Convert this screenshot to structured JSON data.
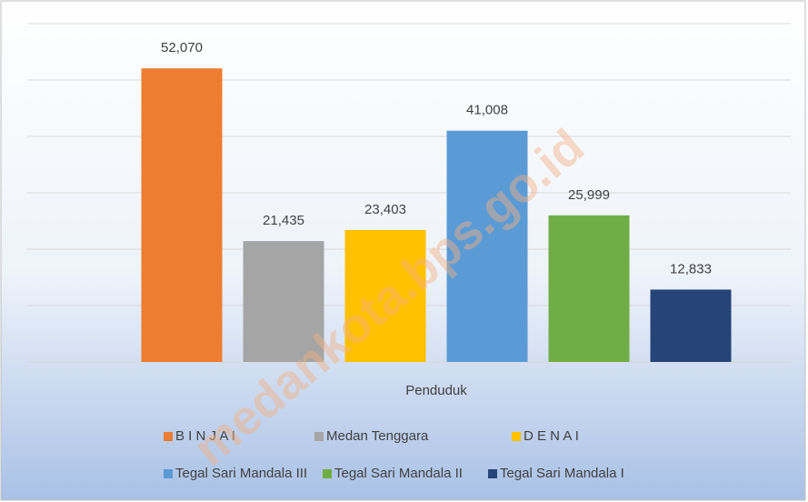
{
  "chart_data": {
    "type": "bar",
    "categories": [
      "Penduduk"
    ],
    "series": [
      {
        "name": "B I N J A I",
        "color": "#ed7d31",
        "values": [
          52070
        ],
        "value_labels": [
          "52,070"
        ]
      },
      {
        "name": "Medan Tenggara",
        "color": "#a5a5a5",
        "values": [
          21435
        ],
        "value_labels": [
          "21,435"
        ]
      },
      {
        "name": "D E N A I",
        "color": "#ffc000",
        "values": [
          23403
        ],
        "value_labels": [
          "23,403"
        ]
      },
      {
        "name": "Tegal Sari Mandala III",
        "color": "#5b9bd5",
        "values": [
          41008
        ],
        "value_labels": [
          "41,008"
        ]
      },
      {
        "name": "Tegal Sari Mandala II",
        "color": "#70ad47",
        "values": [
          25999
        ],
        "value_labels": [
          "25,999"
        ]
      },
      {
        "name": "Tegal Sari Mandala I",
        "color": "#264478",
        "values": [
          12833
        ],
        "value_labels": [
          "12,833"
        ]
      }
    ],
    "ylim": [
      0,
      60000
    ],
    "yticks": [
      0,
      10000,
      20000,
      30000,
      40000,
      50000,
      60000
    ],
    "grid": true,
    "legend": "bottom",
    "watermark": "medankota.bps.go.id"
  }
}
